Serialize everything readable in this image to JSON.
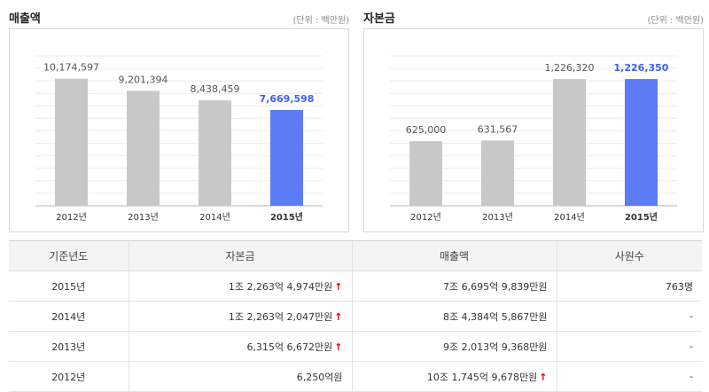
{
  "charts": {
    "sales": {
      "title": "매출액",
      "unit": "(단위 : 백만원)"
    },
    "capital": {
      "title": "자본금",
      "unit": "(단위 : 백만원)"
    }
  },
  "chart_data": [
    {
      "type": "bar",
      "title": "매출액",
      "categories": [
        "2012년",
        "2013년",
        "2014년",
        "2015년"
      ],
      "values": [
        10174597,
        9201394,
        8438459,
        7669598
      ],
      "value_labels": [
        "10,174,597",
        "9,201,394",
        "8,438,459",
        "7,669,598"
      ],
      "highlight_index": 3,
      "ylim": [
        0,
        12000000
      ],
      "grid": true,
      "colors": {
        "bar": "#c8c8c8",
        "highlight": "#5b7cf5",
        "label": "#555555",
        "highlight_label": "#3b5ef0"
      }
    },
    {
      "type": "bar",
      "title": "자본금",
      "categories": [
        "2012년",
        "2013년",
        "2014년",
        "2015년"
      ],
      "values": [
        625000,
        631567,
        1226320,
        1226350
      ],
      "value_labels": [
        "625,000",
        "631,567",
        "1,226,320",
        "1,226,350"
      ],
      "highlight_index": 3,
      "ylim": [
        0,
        1450000
      ],
      "grid": true,
      "colors": {
        "bar": "#c8c8c8",
        "highlight": "#5b7cf5",
        "label": "#555555",
        "highlight_label": "#3b5ef0"
      }
    }
  ],
  "table": {
    "headers": [
      "기준년도",
      "자본금",
      "매출액",
      "사원수"
    ],
    "rows": [
      {
        "year": "2015년",
        "capital": "1조 2,263억 4,974만원",
        "capital_up": true,
        "sales": "7조 6,695억 9,839만원",
        "sales_up": false,
        "employees": "763명"
      },
      {
        "year": "2014년",
        "capital": "1조 2,263억 2,047만원",
        "capital_up": true,
        "sales": "8조 4,384억 5,867만원",
        "sales_up": false,
        "employees": "-"
      },
      {
        "year": "2013년",
        "capital": "6,315억 6,672만원",
        "capital_up": true,
        "sales": "9조 2,013억 9,368만원",
        "sales_up": false,
        "employees": "-"
      },
      {
        "year": "2012년",
        "capital": "6,250억원",
        "capital_up": false,
        "sales": "10조 1,745억 9,678만원",
        "sales_up": true,
        "employees": "-"
      }
    ],
    "up_arrow": "↑"
  }
}
